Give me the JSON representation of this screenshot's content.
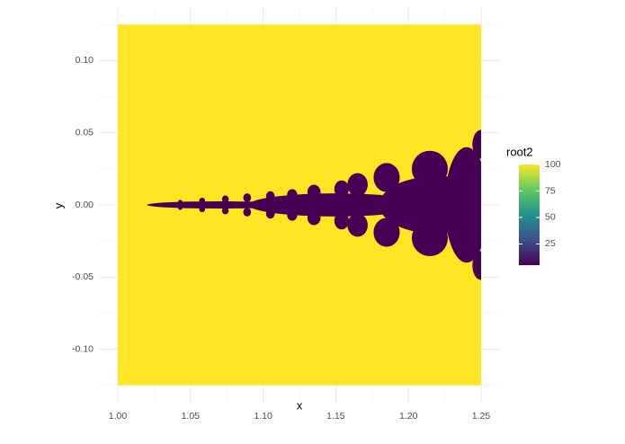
{
  "chart_data": {
    "type": "raster",
    "x_label": "x",
    "y_label": "y",
    "xlim": [
      0.987,
      1.263
    ],
    "ylim": [
      -0.137,
      0.137
    ],
    "xticks": [
      {
        "value": 1.0,
        "label": "1.00"
      },
      {
        "value": 1.05,
        "label": "1.05"
      },
      {
        "value": 1.1,
        "label": "1.10"
      },
      {
        "value": 1.15,
        "label": "1.15"
      },
      {
        "value": 1.2,
        "label": "1.20"
      },
      {
        "value": 1.25,
        "label": "1.25"
      }
    ],
    "yticks": [
      {
        "value": -0.1,
        "label": "-0.10"
      },
      {
        "value": -0.05,
        "label": "-0.05"
      },
      {
        "value": 0.0,
        "label": "0.00"
      },
      {
        "value": 0.05,
        "label": "0.05"
      },
      {
        "value": 0.1,
        "label": "0.10"
      }
    ],
    "x_minor_ticks": [
      1.025,
      1.075,
      1.125,
      1.175,
      1.225
    ],
    "y_minor_ticks": [
      -0.125,
      -0.075,
      -0.025,
      0.025,
      0.075,
      0.125
    ],
    "grid": true,
    "extent": {
      "x": [
        1.0,
        1.25
      ],
      "y": [
        -0.125,
        0.125
      ]
    },
    "background_value": 100,
    "blobs": [
      {
        "x": 1.07,
        "y": 0.0,
        "rx": 0.05,
        "ry": 0.0025,
        "value": 5
      },
      {
        "x": 1.15,
        "y": 0.0,
        "rx": 0.06,
        "ry": 0.008,
        "value": 5
      },
      {
        "x": 1.22,
        "y": 0.0,
        "rx": 0.04,
        "ry": 0.02,
        "value": 5
      },
      {
        "x": 1.24,
        "y": 0.0,
        "rx": 0.015,
        "ry": 0.04,
        "value": 5
      },
      {
        "x": 1.25,
        "y": 0.042,
        "rx": 0.006,
        "ry": 0.01,
        "value": 5
      },
      {
        "x": 1.25,
        "y": -0.042,
        "rx": 0.006,
        "ry": 0.01,
        "value": 5
      },
      {
        "x": 1.2147,
        "y": 0.025,
        "rx": 0.0124,
        "ry": 0.0125,
        "value": 5
      },
      {
        "x": 1.2147,
        "y": -0.023,
        "rx": 0.0124,
        "ry": 0.0125,
        "value": 5
      },
      {
        "x": 1.185,
        "y": 0.019,
        "rx": 0.009,
        "ry": 0.01,
        "value": 5
      },
      {
        "x": 1.185,
        "y": -0.019,
        "rx": 0.009,
        "ry": 0.01,
        "value": 5
      },
      {
        "x": 1.165,
        "y": 0.014,
        "rx": 0.007,
        "ry": 0.008,
        "value": 5
      },
      {
        "x": 1.165,
        "y": -0.014,
        "rx": 0.007,
        "ry": 0.008,
        "value": 5
      },
      {
        "x": 1.154,
        "y": 0.011,
        "rx": 0.005,
        "ry": 0.006,
        "value": 5
      },
      {
        "x": 1.154,
        "y": -0.011,
        "rx": 0.005,
        "ry": 0.006,
        "value": 5
      },
      {
        "x": 1.135,
        "y": 0.009,
        "rx": 0.0045,
        "ry": 0.005,
        "value": 5
      },
      {
        "x": 1.135,
        "y": -0.009,
        "rx": 0.0045,
        "ry": 0.005,
        "value": 5
      },
      {
        "x": 1.12,
        "y": 0.007,
        "rx": 0.0035,
        "ry": 0.004,
        "value": 5
      },
      {
        "x": 1.12,
        "y": -0.007,
        "rx": 0.0035,
        "ry": 0.004,
        "value": 5
      },
      {
        "x": 1.105,
        "y": 0.006,
        "rx": 0.003,
        "ry": 0.0035,
        "value": 5
      },
      {
        "x": 1.105,
        "y": -0.006,
        "rx": 0.003,
        "ry": 0.0035,
        "value": 5
      },
      {
        "x": 1.089,
        "y": 0.005,
        "rx": 0.0027,
        "ry": 0.003,
        "value": 5
      },
      {
        "x": 1.089,
        "y": -0.005,
        "rx": 0.0027,
        "ry": 0.003,
        "value": 5
      },
      {
        "x": 1.074,
        "y": 0.004,
        "rx": 0.0023,
        "ry": 0.0025,
        "value": 5
      },
      {
        "x": 1.074,
        "y": -0.004,
        "rx": 0.0023,
        "ry": 0.0025,
        "value": 5
      },
      {
        "x": 1.058,
        "y": 0.003,
        "rx": 0.002,
        "ry": 0.002,
        "value": 5
      },
      {
        "x": 1.058,
        "y": -0.003,
        "rx": 0.002,
        "ry": 0.002,
        "value": 5
      },
      {
        "x": 1.043,
        "y": 0.002,
        "rx": 0.0015,
        "ry": 0.0015,
        "value": 5
      },
      {
        "x": 1.043,
        "y": -0.002,
        "rx": 0.0015,
        "ry": 0.0015,
        "value": 5
      }
    ],
    "legend": {
      "title": "root2",
      "lim": [
        5,
        100
      ],
      "ticks": [
        25,
        50,
        75,
        100
      ]
    }
  }
}
